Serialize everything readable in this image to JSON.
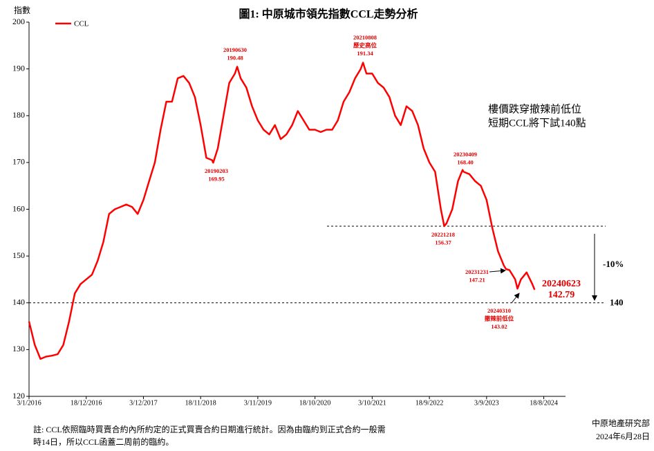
{
  "chart_data": {
    "type": "line",
    "title": "圖1: 中原城市領先指數CCL走勢分析",
    "ylabel": "指數",
    "x": [
      "3/1/2016",
      "7/2/2016",
      "13/3/2016",
      "17/4/2016",
      "22/5/2016",
      "26/6/2016",
      "31/7/2016",
      "4/9/2016",
      "9/10/2016",
      "13/11/2016",
      "18/12/2016",
      "22/1/2017",
      "26/2/2017",
      "2/4/2017",
      "7/5/2017",
      "11/6/2017",
      "16/7/2017",
      "20/8/2017",
      "24/9/2017",
      "29/10/2017",
      "3/12/2017",
      "7/1/2018",
      "11/2/2018",
      "18/3/2018",
      "22/4/2018",
      "27/5/2018",
      "1/7/2018",
      "5/8/2018",
      "9/9/2018",
      "14/10/2018",
      "18/11/2018",
      "23/12/2018",
      "27/1/2019",
      "3/2/2019",
      "3/3/2019",
      "7/4/2019",
      "12/5/2019",
      "16/6/2019",
      "30/6/2019",
      "21/7/2019",
      "25/8/2019",
      "29/9/2019",
      "3/11/2019",
      "8/12/2019",
      "12/1/2020",
      "16/2/2020",
      "22/3/2020",
      "26/4/2020",
      "31/5/2020",
      "5/7/2020",
      "9/8/2020",
      "13/9/2020",
      "18/10/2020",
      "22/11/2020",
      "27/12/2020",
      "31/1/2021",
      "7/3/2021",
      "11/4/2021",
      "16/5/2021",
      "20/6/2021",
      "25/7/2021",
      "8/8/2021",
      "29/8/2021",
      "3/10/2021",
      "7/11/2021",
      "12/12/2021",
      "16/1/2022",
      "20/2/2022",
      "27/3/2022",
      "1/5/2022",
      "5/6/2022",
      "10/7/2022",
      "14/8/2022",
      "18/9/2022",
      "23/10/2022",
      "27/11/2022",
      "18/12/2022",
      "1/1/2023",
      "5/2/2023",
      "12/3/2023",
      "9/4/2023",
      "16/4/2023",
      "21/5/2023",
      "25/6/2023",
      "30/7/2023",
      "3/9/2023",
      "8/10/2023",
      "12/11/2023",
      "17/12/2023",
      "31/12/2023",
      "21/1/2024",
      "25/2/2024",
      "10/3/2024",
      "31/3/2024",
      "5/5/2024",
      "9/6/2024",
      "23/6/2024"
    ],
    "series": [
      {
        "name": "CCL",
        "color": "#ff0000",
        "values": [
          136,
          131,
          128,
          128.5,
          128.7,
          129,
          131,
          136,
          142,
          144,
          145,
          146,
          149,
          153,
          159,
          160,
          160.5,
          161,
          160.5,
          159,
          162,
          166,
          170,
          177,
          183,
          183,
          188,
          188.5,
          187,
          184,
          178,
          171,
          170.5,
          169.95,
          173,
          180,
          187,
          189,
          190.48,
          188,
          186,
          182,
          179,
          177,
          176,
          178,
          175,
          176,
          178,
          181,
          179,
          177,
          177,
          176.5,
          177,
          177,
          179,
          183,
          185,
          188,
          190,
          191.34,
          189,
          189,
          187,
          186,
          184,
          180,
          178,
          182,
          181,
          178,
          173,
          170,
          168,
          160,
          156.37,
          157,
          160,
          166,
          168.4,
          168,
          167.5,
          166,
          165,
          162,
          156,
          151,
          148,
          147.21,
          147,
          145,
          143.02,
          145,
          146.5,
          144,
          142.79
        ]
      }
    ],
    "xlim": [
      "3/1/2016",
      "29/12/2024"
    ],
    "xticks": [
      "3/1/2016",
      "18/12/2016",
      "3/12/2017",
      "18/11/2018",
      "3/11/2019",
      "18/10/2020",
      "3/10/2021",
      "18/9/2022",
      "3/9/2023",
      "18/8/2024"
    ],
    "ylim": [
      120,
      200
    ],
    "yticks": [
      120,
      130,
      140,
      150,
      160,
      170,
      180,
      190,
      200
    ],
    "grid": false,
    "legend": "top-left",
    "reference_lines": [
      {
        "value": 156.37
      },
      {
        "value": 140,
        "label": "140"
      }
    ],
    "drop_label": "-10%",
    "annotations": [
      {
        "lines": [
          "20190203",
          "169.95"
        ]
      },
      {
        "lines": [
          "20190630",
          "190.48"
        ]
      },
      {
        "lines": [
          "20210808",
          "歷史高位",
          "191.34"
        ]
      },
      {
        "lines": [
          "20221218",
          "156.37"
        ]
      },
      {
        "lines": [
          "20230409",
          "168.40"
        ]
      },
      {
        "lines": [
          "20231231",
          "147.21"
        ]
      },
      {
        "lines": [
          "20240310",
          "撤辣前低位",
          "143.02"
        ]
      },
      {
        "lines": [
          "20240623",
          "142.79"
        ]
      }
    ],
    "callout": [
      "樓價跌穿撤辣前低位",
      "短期CCL將下試140點"
    ],
    "footnote": [
      "註: CCL依照臨時買賣合約內所約定的正式買賣合約日期進行統計。因為由臨約到正式合約一般需",
      "時14日，所以CCL函蓋二周前的臨約。"
    ],
    "source": [
      "中原地產研究部",
      "2024年6月28日"
    ]
  }
}
